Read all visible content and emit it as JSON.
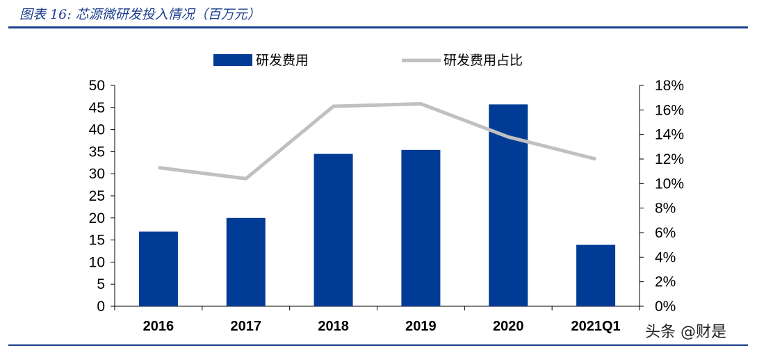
{
  "title": "图表 16:  芯源微研发投入情况（百万元）",
  "watermark": "头条 @财是",
  "colors": {
    "bar": "#003c96",
    "line": "#c0c0c0",
    "rule": "#1d3f8f"
  },
  "chart_data": {
    "type": "bar",
    "categories": [
      "2016",
      "2017",
      "2018",
      "2019",
      "2020",
      "2021Q1"
    ],
    "series": [
      {
        "name": "研发费用",
        "type": "bar",
        "axis": "left",
        "values": [
          16.9,
          20.0,
          34.5,
          35.4,
          45.7,
          13.9
        ]
      },
      {
        "name": "研发费用占比",
        "type": "line",
        "axis": "right",
        "values": [
          11.3,
          10.4,
          16.3,
          16.5,
          13.8,
          12.0
        ]
      }
    ],
    "ylim_left": [
      0,
      50
    ],
    "yticks_left": [
      "0",
      "5",
      "10",
      "15",
      "20",
      "25",
      "30",
      "35",
      "40",
      "45",
      "50"
    ],
    "ylim_right": [
      0,
      18
    ],
    "yticks_right": [
      "0%",
      "2%",
      "4%",
      "6%",
      "8%",
      "10%",
      "12%",
      "14%",
      "16%",
      "18%"
    ],
    "legend_position": "top-center",
    "grid": false
  }
}
